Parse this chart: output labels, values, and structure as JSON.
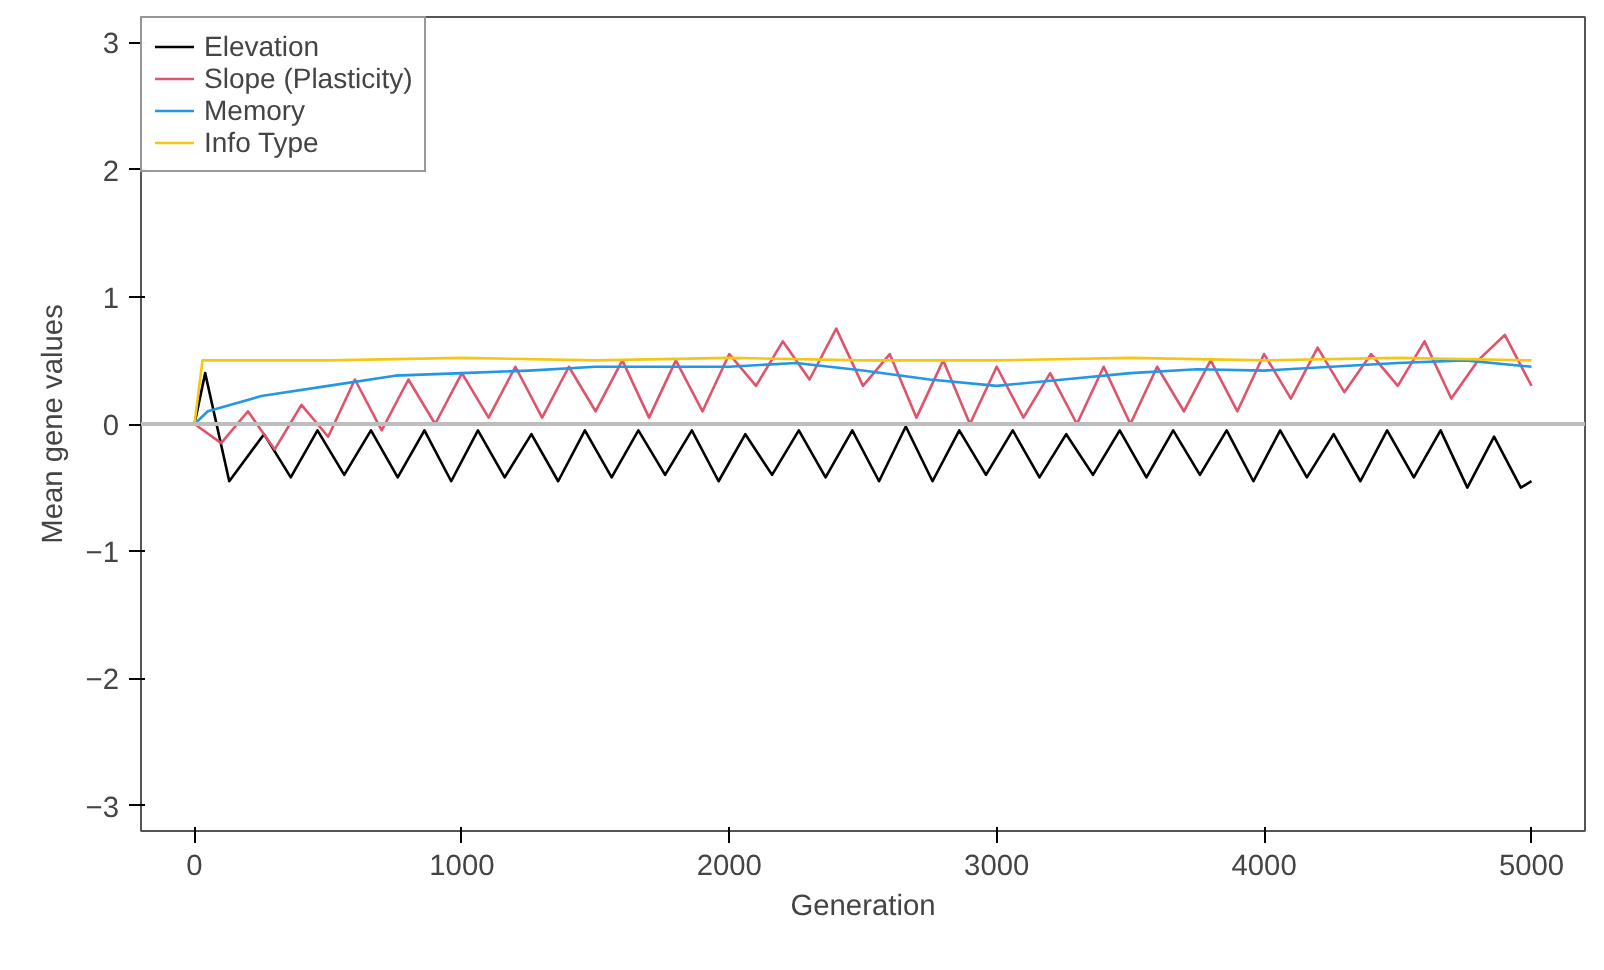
{
  "chart_data": {
    "type": "line",
    "xlabel": "Generation",
    "ylabel": "Mean gene values",
    "xlim": [
      -200,
      5200
    ],
    "ylim": [
      -3.2,
      3.2
    ],
    "xticks": [
      0,
      1000,
      2000,
      3000,
      4000,
      5000
    ],
    "yticks": [
      -3,
      -2,
      -1,
      0,
      1,
      2,
      3
    ],
    "grid": false,
    "legend": "top left",
    "line_style": "solid",
    "ref_lines": [
      {
        "axis": "y",
        "value": 0,
        "color": "#bebebe"
      }
    ],
    "series": [
      {
        "name": "Elevation",
        "color": "#000000",
        "x": [
          0,
          40,
          130,
          260,
          360,
          460,
          560,
          660,
          760,
          860,
          960,
          1060,
          1160,
          1260,
          1360,
          1460,
          1560,
          1660,
          1760,
          1860,
          1960,
          2060,
          2160,
          2260,
          2360,
          2460,
          2560,
          2660,
          2760,
          2860,
          2960,
          3060,
          3160,
          3260,
          3360,
          3460,
          3560,
          3660,
          3760,
          3860,
          3960,
          4060,
          4160,
          4260,
          4360,
          4460,
          4560,
          4660,
          4760,
          4860,
          4960,
          5000
        ],
        "values": [
          0,
          0.4,
          -0.45,
          -0.08,
          -0.42,
          -0.05,
          -0.4,
          -0.05,
          -0.42,
          -0.05,
          -0.45,
          -0.05,
          -0.42,
          -0.08,
          -0.45,
          -0.05,
          -0.42,
          -0.05,
          -0.4,
          -0.05,
          -0.45,
          -0.08,
          -0.4,
          -0.05,
          -0.42,
          -0.05,
          -0.45,
          -0.02,
          -0.45,
          -0.05,
          -0.4,
          -0.05,
          -0.42,
          -0.08,
          -0.4,
          -0.05,
          -0.42,
          -0.05,
          -0.4,
          -0.05,
          -0.45,
          -0.05,
          -0.42,
          -0.08,
          -0.45,
          -0.05,
          -0.42,
          -0.05,
          -0.5,
          -0.1,
          -0.5,
          -0.45
        ]
      },
      {
        "name": "Slope (Plasticity)",
        "color": "#df536b",
        "x": [
          0,
          100,
          200,
          300,
          400,
          500,
          600,
          700,
          800,
          900,
          1000,
          1100,
          1200,
          1300,
          1400,
          1500,
          1600,
          1700,
          1800,
          1900,
          2000,
          2100,
          2200,
          2300,
          2400,
          2500,
          2600,
          2700,
          2800,
          2900,
          3000,
          3100,
          3200,
          3300,
          3400,
          3500,
          3600,
          3700,
          3800,
          3900,
          4000,
          4100,
          4200,
          4300,
          4400,
          4500,
          4600,
          4700,
          4800,
          4900,
          5000
        ],
        "values": [
          0,
          -0.15,
          0.1,
          -0.2,
          0.15,
          -0.1,
          0.35,
          -0.05,
          0.35,
          0.0,
          0.4,
          0.05,
          0.45,
          0.05,
          0.45,
          0.1,
          0.5,
          0.05,
          0.5,
          0.1,
          0.55,
          0.3,
          0.65,
          0.35,
          0.75,
          0.3,
          0.55,
          0.05,
          0.5,
          0.0,
          0.45,
          0.05,
          0.4,
          0.0,
          0.45,
          0.0,
          0.45,
          0.1,
          0.5,
          0.1,
          0.55,
          0.2,
          0.6,
          0.25,
          0.55,
          0.3,
          0.65,
          0.2,
          0.5,
          0.7,
          0.3
        ]
      },
      {
        "name": "Memory",
        "color": "#2297e6",
        "x": [
          0,
          50,
          250,
          500,
          750,
          1000,
          1250,
          1500,
          1750,
          2000,
          2250,
          2500,
          2750,
          3000,
          3250,
          3500,
          3750,
          4000,
          4250,
          4500,
          4750,
          5000
        ],
        "values": [
          0,
          0.1,
          0.22,
          0.3,
          0.38,
          0.4,
          0.42,
          0.45,
          0.45,
          0.45,
          0.48,
          0.42,
          0.35,
          0.3,
          0.35,
          0.4,
          0.43,
          0.42,
          0.45,
          0.48,
          0.5,
          0.45
        ]
      },
      {
        "name": "Info Type",
        "color": "#f5c710",
        "x": [
          0,
          30,
          500,
          1000,
          1500,
          2000,
          2500,
          3000,
          3500,
          4000,
          4500,
          5000
        ],
        "values": [
          0,
          0.5,
          0.5,
          0.52,
          0.5,
          0.52,
          0.5,
          0.5,
          0.52,
          0.5,
          0.52,
          0.5
        ]
      }
    ]
  }
}
